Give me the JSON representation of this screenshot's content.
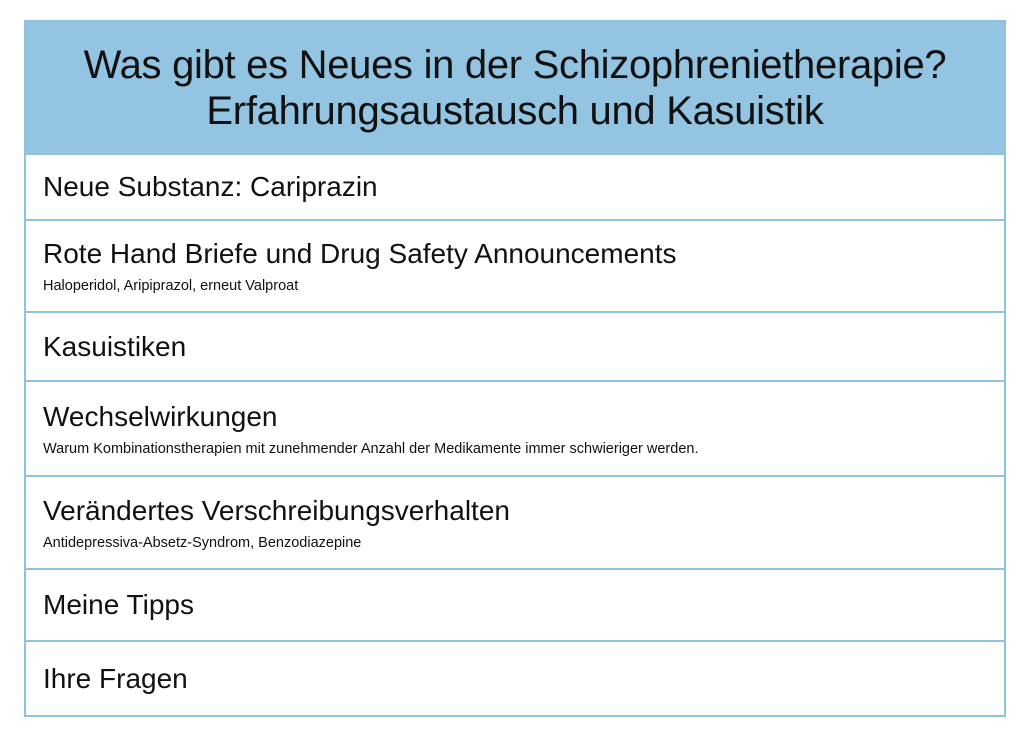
{
  "title": {
    "line1": "Was gibt es Neues in der Schizophrenietherapie?",
    "line2": "Erfahrungsaustausch und Kasuistik"
  },
  "items": [
    {
      "label": "Neue Substanz: Cariprazin",
      "sub": ""
    },
    {
      "label": "Rote Hand Briefe und Drug Safety Announcements",
      "sub": "Haloperidol, Aripiprazol, erneut Valproat"
    },
    {
      "label": "Kasuistiken",
      "sub": ""
    },
    {
      "label": "Wechselwirkungen",
      "sub": "Warum Kombinationstherapien mit zunehmender Anzahl der Medikamente immer schwieriger werden."
    },
    {
      "label": "Verändertes Verschreibungsverhalten",
      "sub": "Antidepressiva-Absetz-Syndrom, Benzodiazepine"
    },
    {
      "label": "Meine Tipps",
      "sub": ""
    },
    {
      "label": "Ihre Fragen",
      "sub": ""
    }
  ],
  "colors": {
    "header_bg": "#93c4e1",
    "border": "#8fc1e0"
  }
}
